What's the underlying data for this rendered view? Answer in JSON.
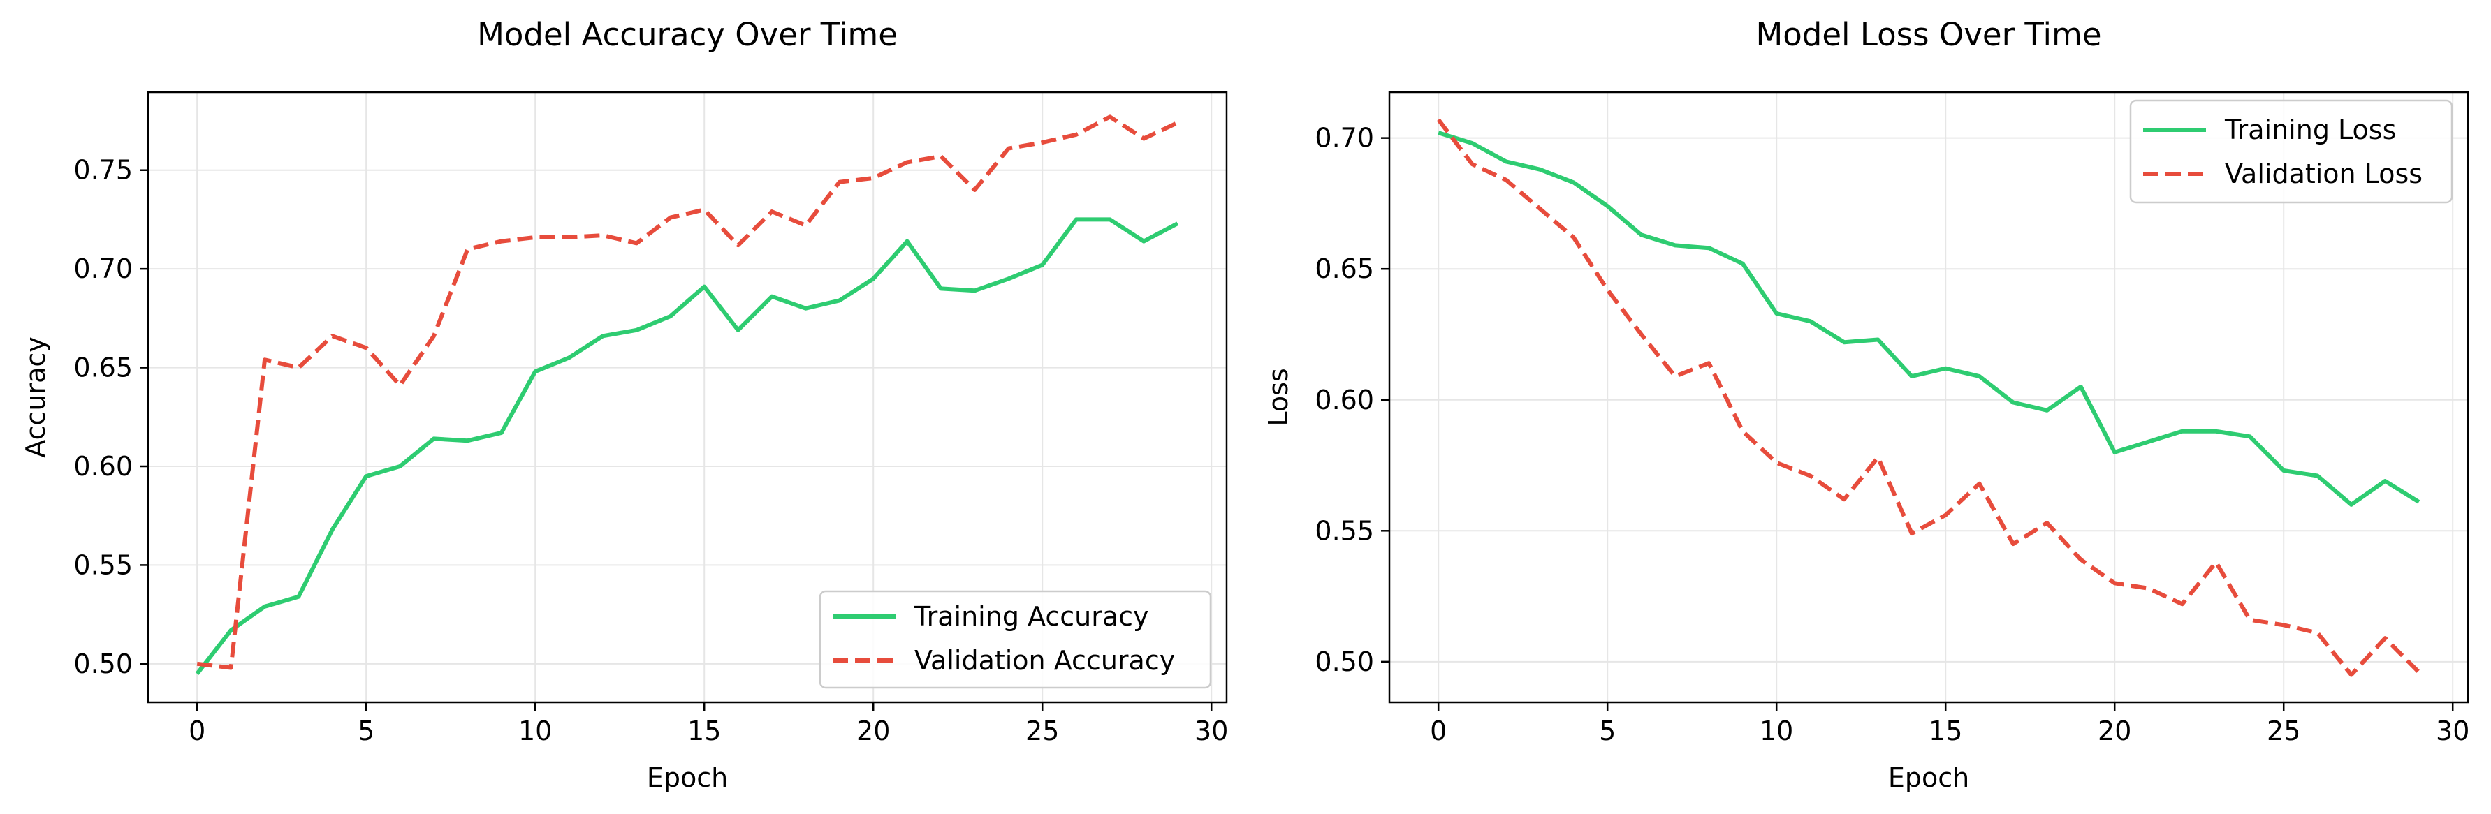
{
  "chart_data": [
    {
      "type": "line",
      "title": "Model Accuracy Over Time",
      "xlabel": "Epoch",
      "ylabel": "Accuracy",
      "xlim": [
        -1.45,
        30.45
      ],
      "ylim": [
        0.4805,
        0.7895
      ],
      "xticks": [
        0,
        5,
        10,
        15,
        20,
        25,
        30
      ],
      "xtick_labels": [
        "0",
        "5",
        "10",
        "15",
        "20",
        "25",
        "30"
      ],
      "yticks": [
        0.5,
        0.55,
        0.6,
        0.65,
        0.7,
        0.75
      ],
      "ytick_labels": [
        "0.50",
        "0.55",
        "0.60",
        "0.65",
        "0.70",
        "0.75"
      ],
      "grid": true,
      "legend_position": "lower-right",
      "x": [
        0,
        1,
        2,
        3,
        4,
        5,
        6,
        7,
        8,
        9,
        10,
        11,
        12,
        13,
        14,
        15,
        16,
        17,
        18,
        19,
        20,
        21,
        22,
        23,
        24,
        25,
        26,
        27,
        28,
        29
      ],
      "series": [
        {
          "name": "Training Accuracy",
          "color": "#2ecc71",
          "style": "solid",
          "values": [
            0.495,
            0.517,
            0.529,
            0.534,
            0.568,
            0.595,
            0.6,
            0.614,
            0.613,
            0.617,
            0.648,
            0.655,
            0.666,
            0.669,
            0.676,
            0.691,
            0.669,
            0.686,
            0.68,
            0.684,
            0.695,
            0.714,
            0.69,
            0.689,
            0.695,
            0.702,
            0.725,
            0.725,
            0.714,
            0.723
          ]
        },
        {
          "name": "Validation Accuracy",
          "color": "#e74c3c",
          "style": "dashed",
          "values": [
            0.5,
            0.498,
            0.654,
            0.65,
            0.666,
            0.66,
            0.641,
            0.666,
            0.71,
            0.714,
            0.716,
            0.716,
            0.717,
            0.713,
            0.726,
            0.73,
            0.712,
            0.729,
            0.722,
            0.744,
            0.746,
            0.754,
            0.757,
            0.74,
            0.761,
            0.764,
            0.768,
            0.777,
            0.766,
            0.774
          ]
        }
      ]
    },
    {
      "type": "line",
      "title": "Model Loss Over Time",
      "xlabel": "Epoch",
      "ylabel": "Loss",
      "xlim": [
        -1.45,
        30.45
      ],
      "ylim": [
        0.4845,
        0.7175
      ],
      "xticks": [
        0,
        5,
        10,
        15,
        20,
        25,
        30
      ],
      "xtick_labels": [
        "0",
        "5",
        "10",
        "15",
        "20",
        "25",
        "30"
      ],
      "yticks": [
        0.5,
        0.55,
        0.6,
        0.65,
        0.7
      ],
      "ytick_labels": [
        "0.50",
        "0.55",
        "0.60",
        "0.65",
        "0.70"
      ],
      "grid": true,
      "legend_position": "upper-right",
      "x": [
        0,
        1,
        2,
        3,
        4,
        5,
        6,
        7,
        8,
        9,
        10,
        11,
        12,
        13,
        14,
        15,
        16,
        17,
        18,
        19,
        20,
        21,
        22,
        23,
        24,
        25,
        26,
        27,
        28,
        29
      ],
      "series": [
        {
          "name": "Training Loss",
          "color": "#2ecc71",
          "style": "solid",
          "values": [
            0.702,
            0.698,
            0.691,
            0.688,
            0.683,
            0.674,
            0.663,
            0.659,
            0.658,
            0.652,
            0.633,
            0.63,
            0.622,
            0.623,
            0.609,
            0.612,
            0.609,
            0.599,
            0.596,
            0.605,
            0.58,
            0.584,
            0.588,
            0.588,
            0.586,
            0.573,
            0.571,
            0.56,
            0.569,
            0.561
          ]
        },
        {
          "name": "Validation Loss",
          "color": "#e74c3c",
          "style": "dashed",
          "values": [
            0.707,
            0.69,
            0.684,
            0.673,
            0.662,
            0.642,
            0.625,
            0.609,
            0.614,
            0.588,
            0.576,
            0.571,
            0.562,
            0.578,
            0.549,
            0.556,
            0.568,
            0.545,
            0.553,
            0.539,
            0.53,
            0.528,
            0.522,
            0.538,
            0.516,
            0.514,
            0.511,
            0.495,
            0.509,
            0.496
          ]
        }
      ]
    }
  ]
}
